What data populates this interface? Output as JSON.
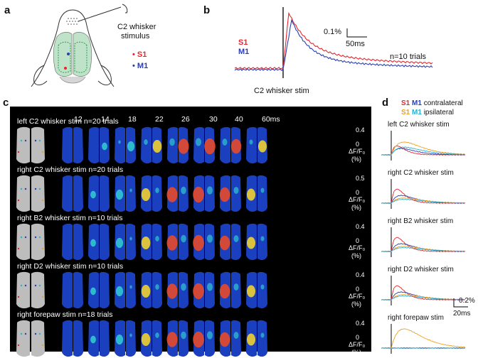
{
  "panel_a": {
    "label": "a",
    "stimulus_text_1": "C2 whisker",
    "stimulus_text_2": "stimulus",
    "legend_s1": "S1",
    "legend_m1": "M1",
    "color_s1": "#e8262b",
    "color_m1": "#2b3fb5"
  },
  "panel_b": {
    "label": "b",
    "legend_s1": "S1",
    "legend_m1": "M1",
    "scale_y": "0.1%",
    "scale_x": "50ms",
    "trials": "n=10 trials",
    "stim_label": "C2 whisker stim"
  },
  "panel_c": {
    "label": "c",
    "times": [
      "12",
      "14",
      "18",
      "22",
      "26",
      "30",
      "40",
      "60ms"
    ],
    "rows": [
      {
        "title": "left C2 whisker stim n=20 trials",
        "cbar_max": "0.4",
        "cbar_min": "0"
      },
      {
        "title": "right C2 whisker stim n=20 trials",
        "cbar_max": "0.5",
        "cbar_min": "0"
      },
      {
        "title": "right B2 whisker stim n=10 trials",
        "cbar_max": "0.4",
        "cbar_min": "0"
      },
      {
        "title": "right D2 whisker stim n=10 trials",
        "cbar_max": "0.4",
        "cbar_min": "0"
      },
      {
        "title": "right forepaw stim n=18 trials",
        "cbar_max": "0.4",
        "cbar_min": "0"
      }
    ],
    "cbar_unit": "ΔF/F₀",
    "cbar_pct": "(%)"
  },
  "panel_d": {
    "label": "d",
    "legend_s1": "S1",
    "legend_m1": "M1",
    "legend_contra": "contralateral",
    "legend_s1_ipsi": "S1",
    "legend_m1_ipsi": "M1",
    "legend_ipsi": "ipsilateral",
    "color_s1_contra": "#e8262b",
    "color_m1_contra": "#2b3fb5",
    "color_s1_ipsi": "#f0a020",
    "color_m1_ipsi": "#2ab0d0",
    "traces": [
      {
        "title": "left C2 whisker stim"
      },
      {
        "title": "right C2 whisker stim"
      },
      {
        "title": "right B2 whisker stim"
      },
      {
        "title": "right D2 whisker stim"
      },
      {
        "title": "right forepaw stim"
      }
    ],
    "scale_y": "0.2%",
    "scale_x": "20ms"
  }
}
